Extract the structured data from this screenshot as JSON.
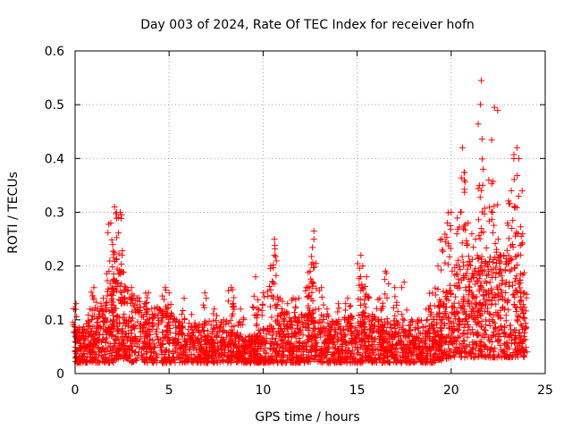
{
  "chart_data": {
    "type": "scatter",
    "title": "Day 003 of 2024, Rate Of TEC Index for receiver hofn",
    "xlabel": "GPS time / hours",
    "ylabel": "ROTI / TECUs",
    "xlim": [
      0,
      25
    ],
    "ylim": [
      0,
      0.6
    ],
    "x_ticks": [
      0,
      5,
      10,
      15,
      20,
      25
    ],
    "x_tick_labels": [
      "0",
      "5",
      "10",
      "15",
      "20",
      "25"
    ],
    "y_ticks": [
      0,
      0.1,
      0.2,
      0.3,
      0.4,
      0.5,
      0.6
    ],
    "y_tick_labels": [
      "0",
      "0.1",
      "0.2",
      "0.3",
      "0.4",
      "0.5",
      "0.6"
    ],
    "grid": true,
    "marker": "plus",
    "series_color": "#ff0000",
    "x_range_observed": [
      0,
      24
    ],
    "points": [
      [
        0.05,
        0.13
      ],
      [
        0.1,
        0.08
      ],
      [
        0.4,
        0.07
      ],
      [
        0.8,
        0.12
      ],
      [
        1.0,
        0.16
      ],
      [
        1.2,
        0.12
      ],
      [
        1.5,
        0.14
      ],
      [
        1.8,
        0.19
      ],
      [
        1.9,
        0.28
      ],
      [
        2.0,
        0.24
      ],
      [
        2.1,
        0.31
      ],
      [
        2.2,
        0.3
      ],
      [
        2.3,
        0.29
      ],
      [
        2.4,
        0.3
      ],
      [
        2.5,
        0.22
      ],
      [
        2.7,
        0.16
      ],
      [
        3.0,
        0.16
      ],
      [
        3.3,
        0.14
      ],
      [
        3.7,
        0.13
      ],
      [
        3.9,
        0.15
      ],
      [
        4.1,
        0.11
      ],
      [
        4.5,
        0.12
      ],
      [
        4.8,
        0.16
      ],
      [
        5.0,
        0.15
      ],
      [
        5.4,
        0.1
      ],
      [
        5.8,
        0.14
      ],
      [
        6.2,
        0.11
      ],
      [
        6.9,
        0.15
      ],
      [
        7.4,
        0.12
      ],
      [
        7.9,
        0.1
      ],
      [
        8.3,
        0.16
      ],
      [
        8.4,
        0.13
      ],
      [
        8.8,
        0.12
      ],
      [
        9.3,
        0.07
      ],
      [
        9.6,
        0.18
      ],
      [
        9.7,
        0.11
      ],
      [
        10.0,
        0.15
      ],
      [
        10.4,
        0.2
      ],
      [
        10.6,
        0.25
      ],
      [
        10.6,
        0.22
      ],
      [
        10.9,
        0.14
      ],
      [
        11.3,
        0.13
      ],
      [
        11.6,
        0.14
      ],
      [
        11.9,
        0.14
      ],
      [
        12.3,
        0.16
      ],
      [
        12.5,
        0.19
      ],
      [
        12.6,
        0.17
      ],
      [
        12.7,
        0.265
      ],
      [
        12.7,
        0.25
      ],
      [
        13.1,
        0.16
      ],
      [
        13.4,
        0.12
      ],
      [
        14.0,
        0.13
      ],
      [
        14.5,
        0.14
      ],
      [
        15.2,
        0.22
      ],
      [
        15.3,
        0.2
      ],
      [
        15.5,
        0.18
      ],
      [
        15.8,
        0.11
      ],
      [
        16.2,
        0.14
      ],
      [
        16.5,
        0.19
      ],
      [
        17.0,
        0.16
      ],
      [
        17.5,
        0.17
      ],
      [
        17.9,
        0.1
      ],
      [
        18.3,
        0.1
      ],
      [
        18.8,
        0.12
      ],
      [
        19.0,
        0.15
      ],
      [
        19.3,
        0.2
      ],
      [
        19.5,
        0.25
      ],
      [
        19.8,
        0.28
      ],
      [
        20.0,
        0.3
      ],
      [
        20.3,
        0.26
      ],
      [
        20.5,
        0.3
      ],
      [
        20.6,
        0.42
      ],
      [
        20.7,
        0.36
      ],
      [
        20.9,
        0.28
      ],
      [
        21.1,
        0.26
      ],
      [
        21.3,
        0.25
      ],
      [
        21.5,
        0.35
      ],
      [
        21.6,
        0.545
      ],
      [
        21.7,
        0.38
      ],
      [
        22.0,
        0.36
      ],
      [
        22.2,
        0.3
      ],
      [
        22.3,
        0.495
      ],
      [
        22.5,
        0.25
      ],
      [
        22.8,
        0.22
      ],
      [
        23.0,
        0.28
      ],
      [
        23.2,
        0.34
      ],
      [
        23.4,
        0.31
      ],
      [
        23.5,
        0.42
      ],
      [
        23.6,
        0.4
      ],
      [
        23.8,
        0.26
      ],
      [
        23.9,
        0.15
      ]
    ],
    "baseline_envelope": [
      [
        0.0,
        0.02,
        0.06
      ],
      [
        1.0,
        0.02,
        0.07
      ],
      [
        2.0,
        0.02,
        0.12
      ],
      [
        2.4,
        0.03,
        0.14
      ],
      [
        3.0,
        0.02,
        0.1
      ],
      [
        4.0,
        0.02,
        0.09
      ],
      [
        5.0,
        0.02,
        0.08
      ],
      [
        6.0,
        0.02,
        0.06
      ],
      [
        7.0,
        0.02,
        0.07
      ],
      [
        8.0,
        0.02,
        0.06
      ],
      [
        9.0,
        0.02,
        0.05
      ],
      [
        10.0,
        0.02,
        0.06
      ],
      [
        11.0,
        0.02,
        0.08
      ],
      [
        12.0,
        0.02,
        0.08
      ],
      [
        13.0,
        0.02,
        0.07
      ],
      [
        14.0,
        0.02,
        0.07
      ],
      [
        15.0,
        0.02,
        0.08
      ],
      [
        16.0,
        0.02,
        0.08
      ],
      [
        17.0,
        0.02,
        0.07
      ],
      [
        18.0,
        0.02,
        0.06
      ],
      [
        19.0,
        0.02,
        0.07
      ],
      [
        20.0,
        0.03,
        0.12
      ],
      [
        21.0,
        0.03,
        0.15
      ],
      [
        22.0,
        0.03,
        0.14
      ],
      [
        23.0,
        0.03,
        0.16
      ],
      [
        24.0,
        0.03,
        0.1
      ]
    ]
  }
}
